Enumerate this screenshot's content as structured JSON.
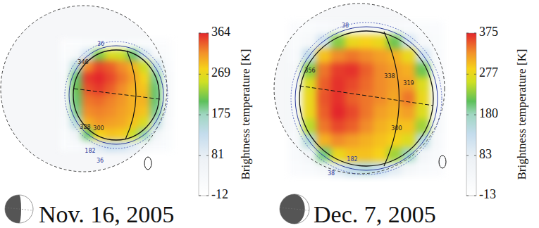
{
  "chart_data": [
    {
      "type": "heatmap",
      "title": "Nov. 16, 2005",
      "tick_labels": false,
      "colorbar": {
        "label": "Brightness temperature [K]",
        "range": [
          -12,
          364
        ],
        "ticks": [
          364,
          269,
          175,
          81,
          -12
        ]
      },
      "contour_labels": [
        36,
        346,
        328,
        300,
        182,
        36
      ],
      "cells": [
        [
          5,
          10,
          15,
          20,
          25,
          25,
          20,
          15,
          10,
          5
        ],
        [
          10,
          30,
          120,
          220,
          260,
          250,
          200,
          110,
          30,
          10
        ],
        [
          20,
          150,
          320,
          350,
          340,
          320,
          300,
          250,
          140,
          20
        ],
        [
          30,
          200,
          355,
          364,
          350,
          330,
          310,
          280,
          190,
          30
        ],
        [
          30,
          210,
          345,
          355,
          340,
          320,
          300,
          290,
          200,
          30
        ],
        [
          30,
          200,
          330,
          335,
          325,
          315,
          300,
          300,
          200,
          30
        ],
        [
          30,
          190,
          320,
          325,
          320,
          310,
          300,
          290,
          190,
          30
        ],
        [
          25,
          150,
          300,
          315,
          310,
          305,
          290,
          260,
          150,
          25
        ],
        [
          15,
          60,
          200,
          280,
          290,
          285,
          250,
          180,
          60,
          15
        ],
        [
          10,
          20,
          40,
          100,
          130,
          120,
          90,
          40,
          20,
          10
        ]
      ]
    },
    {
      "type": "heatmap",
      "title": "Dec. 7, 2005",
      "tick_labels": false,
      "colorbar": {
        "label": "Brightness temperature [K]",
        "range": [
          -13,
          375
        ],
        "ticks": [
          375,
          277,
          180,
          83,
          -13
        ]
      },
      "contour_labels": [
        38,
        356,
        338,
        319,
        300,
        182,
        38
      ],
      "cells": [
        [
          10,
          15,
          20,
          30,
          40,
          40,
          40,
          30,
          20,
          15,
          10
        ],
        [
          15,
          30,
          120,
          230,
          280,
          290,
          280,
          220,
          110,
          30,
          15
        ],
        [
          20,
          140,
          300,
          330,
          340,
          330,
          320,
          310,
          280,
          120,
          20
        ],
        [
          30,
          230,
          340,
          365,
          370,
          350,
          330,
          320,
          310,
          220,
          30
        ],
        [
          40,
          270,
          350,
          370,
          360,
          345,
          330,
          320,
          320,
          270,
          40
        ],
        [
          40,
          280,
          355,
          370,
          350,
          340,
          330,
          315,
          340,
          280,
          40
        ],
        [
          40,
          280,
          350,
          375,
          360,
          340,
          320,
          310,
          320,
          270,
          40
        ],
        [
          35,
          250,
          340,
          360,
          350,
          330,
          310,
          300,
          300,
          240,
          35
        ],
        [
          25,
          160,
          310,
          330,
          320,
          310,
          300,
          290,
          270,
          150,
          25
        ],
        [
          20,
          50,
          200,
          280,
          300,
          300,
          290,
          240,
          180,
          50,
          20
        ],
        [
          10,
          20,
          40,
          100,
          140,
          150,
          130,
          90,
          40,
          20,
          10
        ]
      ]
    }
  ]
}
